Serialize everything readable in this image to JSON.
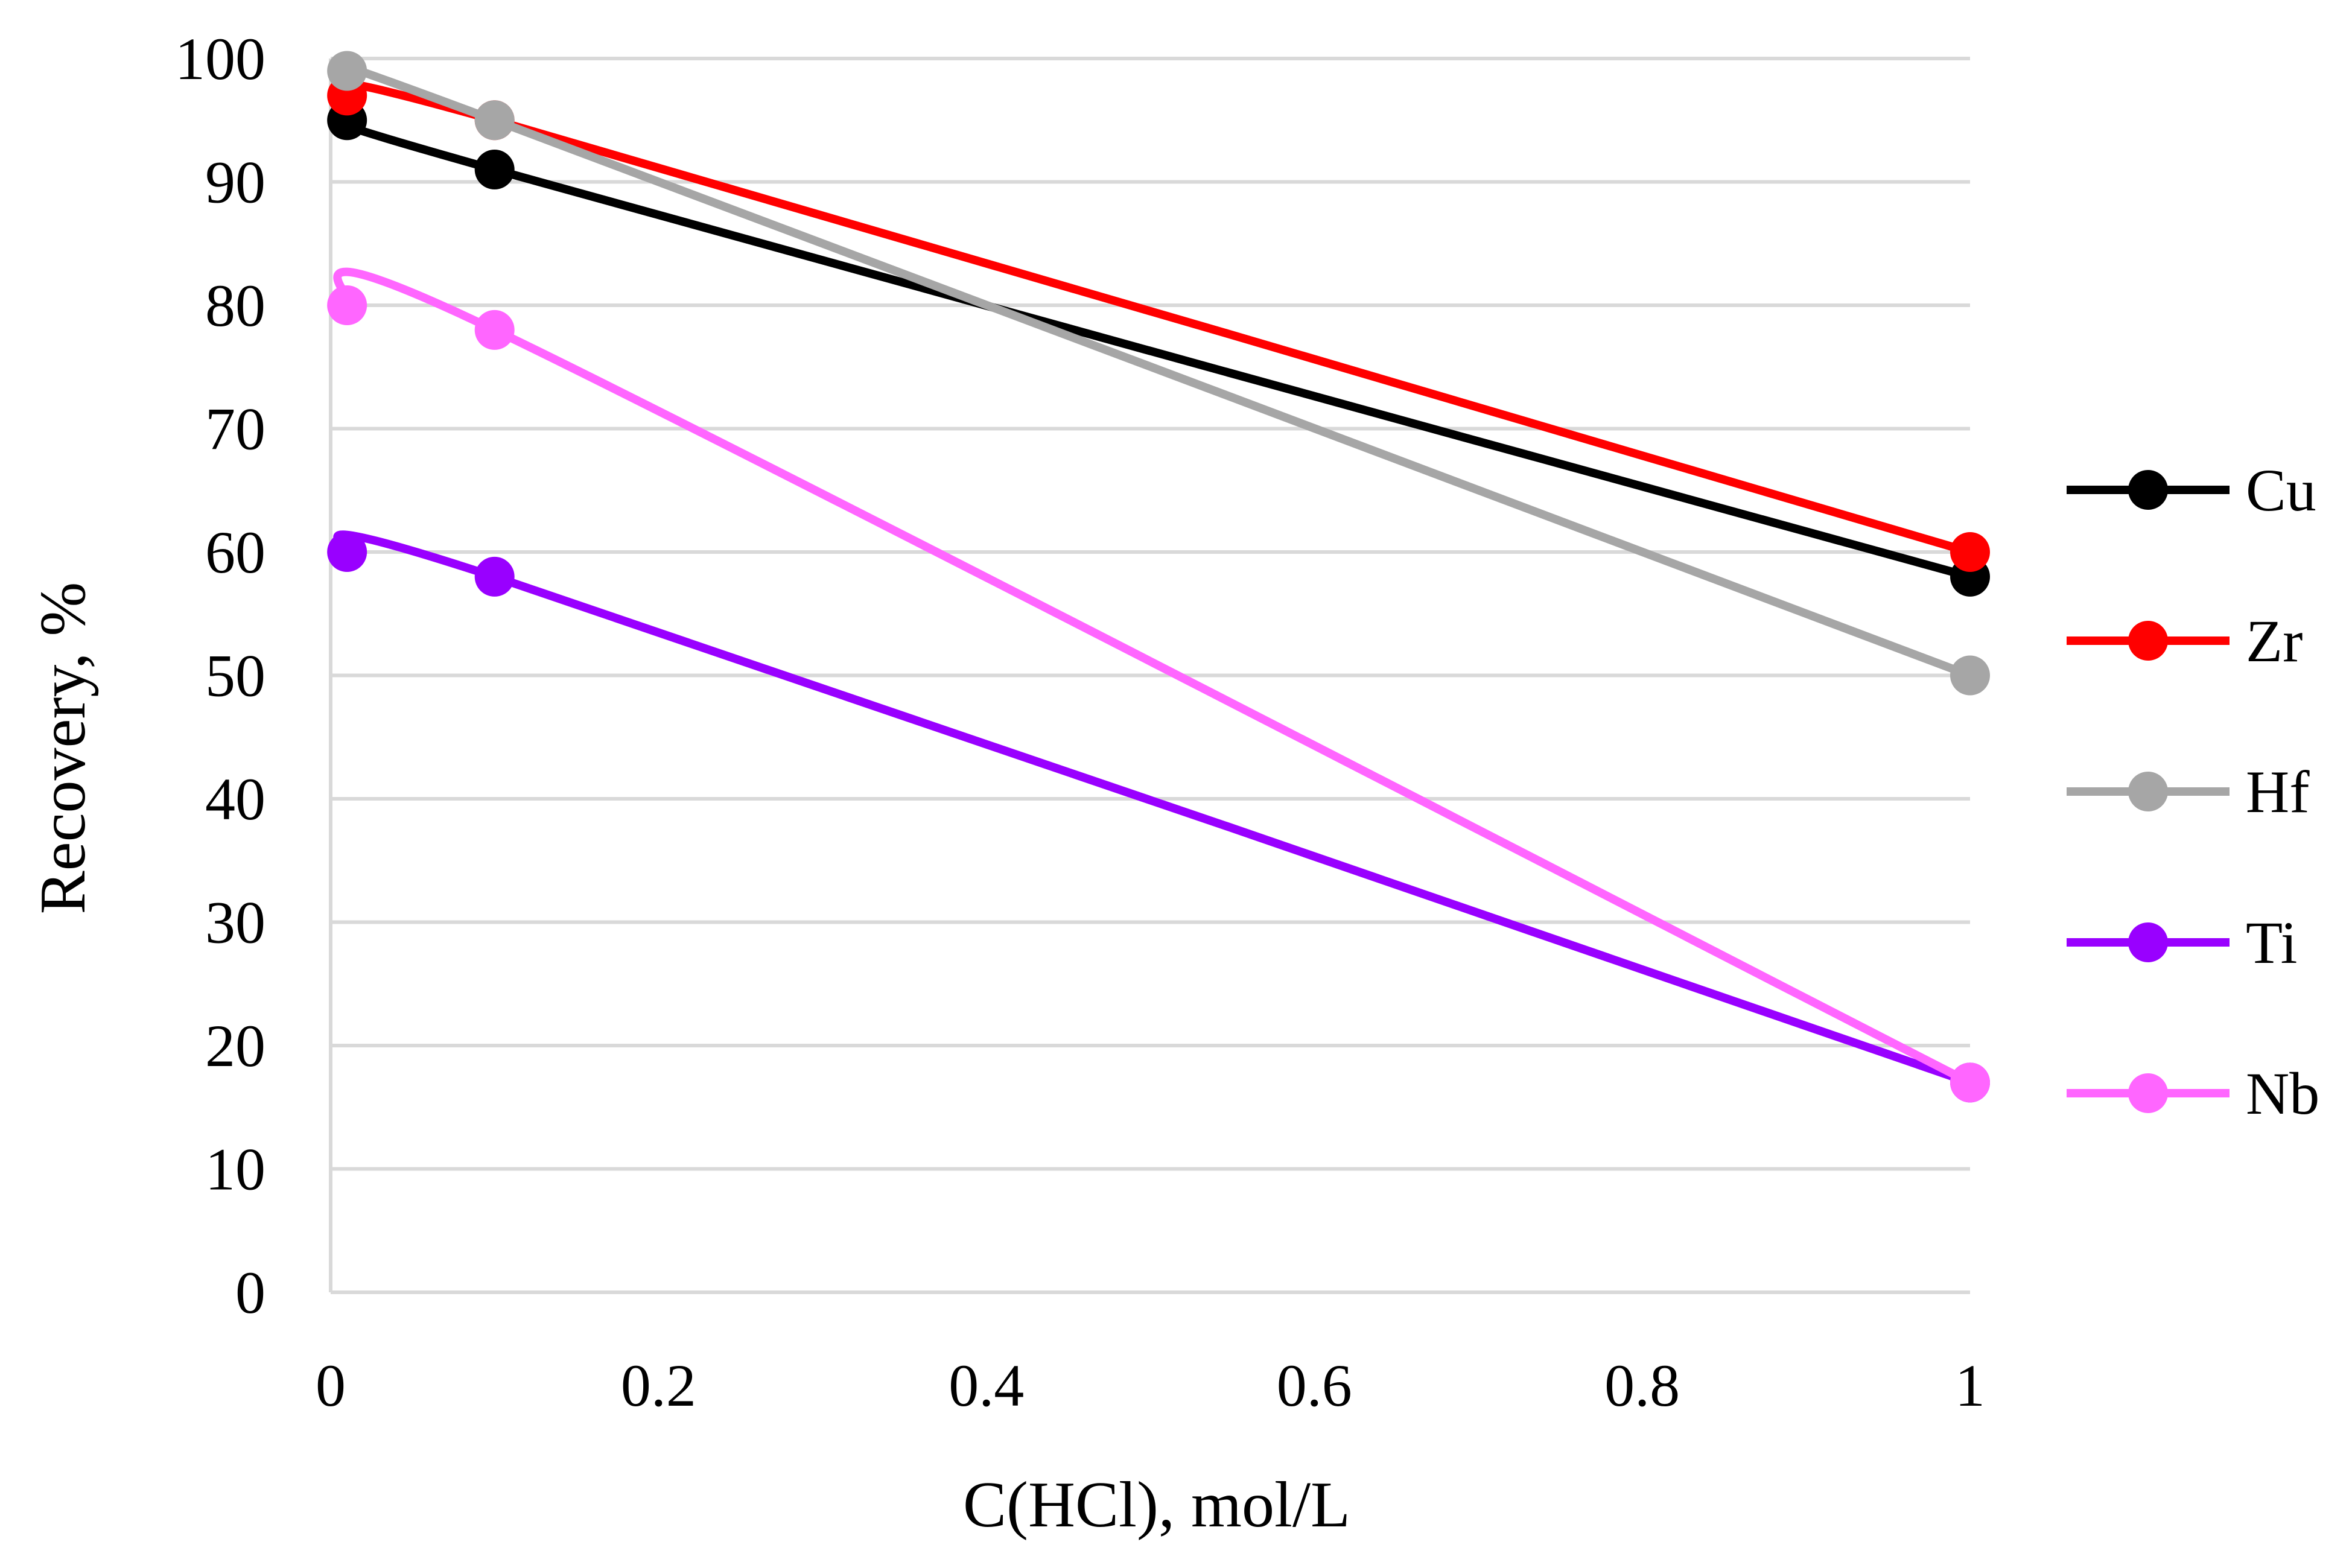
{
  "chart_data": {
    "type": "line",
    "title": "",
    "xlabel": "C(HCl), mol/L",
    "ylabel": "Recovery, %",
    "xlim": [
      0,
      1
    ],
    "ylim": [
      0,
      100
    ],
    "xticks": [
      "0",
      "0.2",
      "0.4",
      "0.6",
      "0.8",
      "1"
    ],
    "yticks": [
      "0",
      "10",
      "20",
      "30",
      "40",
      "50",
      "60",
      "70",
      "80",
      "90",
      "100"
    ],
    "grid": "horizontal",
    "legend_position": "right",
    "series": [
      {
        "name": "Cu",
        "color": "#000000",
        "x": [
          0.01,
          0.1,
          1
        ],
        "y": [
          95,
          91,
          58
        ]
      },
      {
        "name": "Zr",
        "color": "#ff0000",
        "x": [
          0.01,
          0.1,
          1
        ],
        "y": [
          97,
          95,
          60
        ]
      },
      {
        "name": "Hf",
        "color": "#a6a6a6",
        "x": [
          0.01,
          0.1,
          1
        ],
        "y": [
          99,
          95,
          50
        ]
      },
      {
        "name": "Ti",
        "color": "#9900ff",
        "x": [
          0.01,
          0.1,
          1
        ],
        "y": [
          60,
          58,
          17
        ]
      },
      {
        "name": "Nb",
        "color": "#ff66ff",
        "x": [
          0.01,
          0.1,
          1
        ],
        "y": [
          80,
          78,
          17
        ]
      }
    ]
  }
}
